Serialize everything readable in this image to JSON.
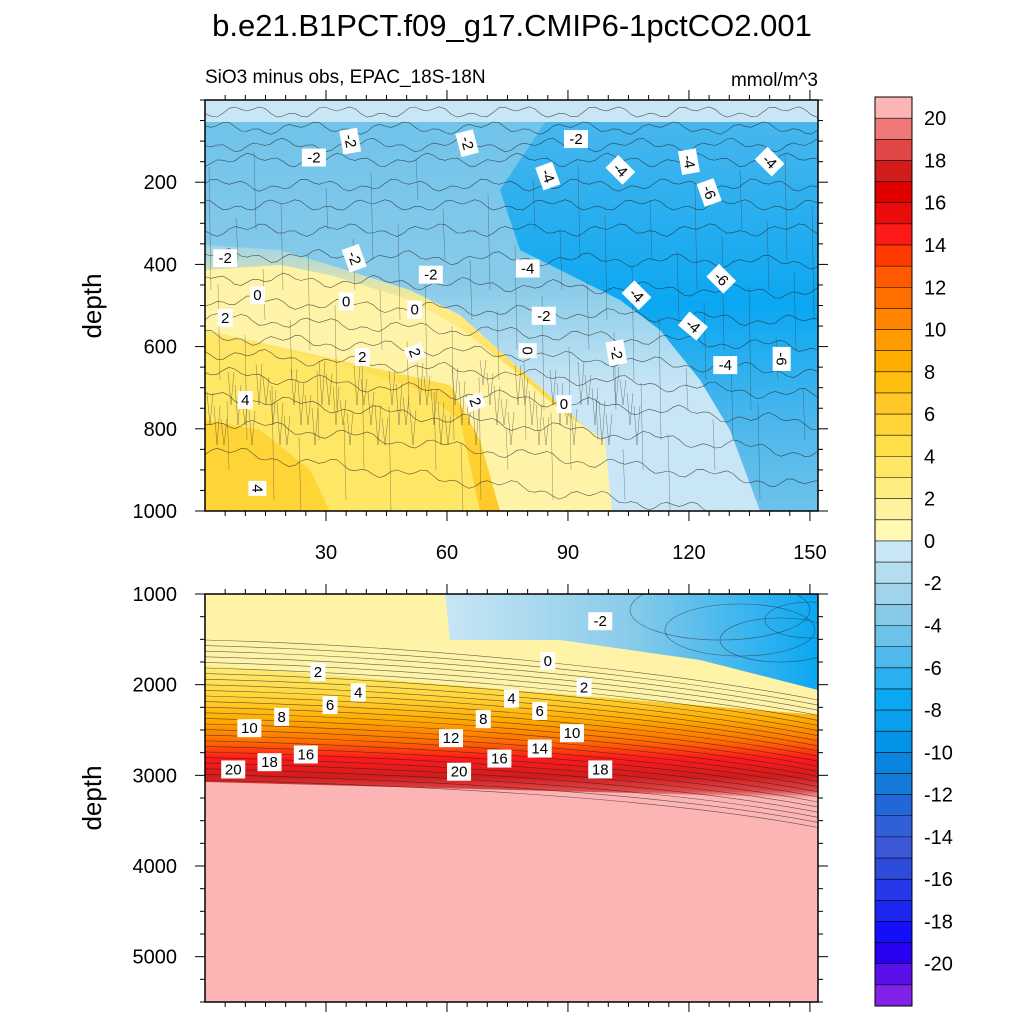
{
  "chart_data": {
    "type": "contour",
    "title": "b.e21.B1PCT.f09_g17.CMIP6-1pctCO2.001",
    "subtitle_left": "SiO3 minus obs, EPAC_18S-18N",
    "subtitle_right": "mmol/m^3",
    "x_range": [
      0,
      152
    ],
    "x_ticks": [
      30,
      60,
      90,
      120,
      150
    ],
    "x_tick_labels": [
      "30",
      "60",
      "90",
      "120",
      "150"
    ],
    "top_panel": {
      "ylabel": "depth",
      "ylim": [
        0,
        1000
      ],
      "y_ticks": [
        200,
        400,
        600,
        800,
        1000
      ],
      "y_tick_labels": [
        "200",
        "400",
        "600",
        "800",
        "1000"
      ]
    },
    "bottom_panel": {
      "ylabel": "depth",
      "ylim": [
        1000,
        5500
      ],
      "y_ticks": [
        1000,
        2000,
        3000,
        4000,
        5000
      ],
      "y_tick_labels": [
        "1000",
        "2000",
        "3000",
        "4000",
        "5000"
      ]
    },
    "contour_labels_top": [
      {
        "x": 36,
        "d": 100,
        "text": "-2",
        "rot": 80
      },
      {
        "x": 65,
        "d": 105,
        "text": "-2",
        "rot": 75
      },
      {
        "x": 92,
        "d": 95,
        "text": "-2",
        "rot": 0
      },
      {
        "x": 27,
        "d": 140,
        "text": "-2",
        "rot": 0
      },
      {
        "x": 85,
        "d": 185,
        "text": "-4",
        "rot": 70
      },
      {
        "x": 103,
        "d": 170,
        "text": "-4",
        "rot": 45
      },
      {
        "x": 120,
        "d": 150,
        "text": "-4",
        "rot": 80
      },
      {
        "x": 140,
        "d": 150,
        "text": "-4",
        "rot": 45
      },
      {
        "x": 125,
        "d": 225,
        "text": "-6",
        "rot": 70
      },
      {
        "x": 5,
        "d": 385,
        "text": "-2",
        "rot": 0
      },
      {
        "x": 37,
        "d": 385,
        "text": "-2",
        "rot": 70
      },
      {
        "x": 56,
        "d": 425,
        "text": "-2",
        "rot": 0
      },
      {
        "x": 80,
        "d": 410,
        "text": "-4",
        "rot": 0
      },
      {
        "x": 107,
        "d": 475,
        "text": "-4",
        "rot": 45
      },
      {
        "x": 128,
        "d": 435,
        "text": "-6",
        "rot": 45
      },
      {
        "x": 84,
        "d": 525,
        "text": "-2",
        "rot": 0
      },
      {
        "x": 121,
        "d": 550,
        "text": "-4",
        "rot": 40
      },
      {
        "x": 102,
        "d": 615,
        "text": "-2",
        "rot": 80
      },
      {
        "x": 129,
        "d": 645,
        "text": "-4",
        "rot": 0
      },
      {
        "x": 143,
        "d": 630,
        "text": "-6",
        "rot": 90
      },
      {
        "x": 13,
        "d": 475,
        "text": "0",
        "rot": 0
      },
      {
        "x": 35,
        "d": 490,
        "text": "0",
        "rot": 0
      },
      {
        "x": 52,
        "d": 510,
        "text": "0",
        "rot": 0
      },
      {
        "x": 80,
        "d": 610,
        "text": "0",
        "rot": 90
      },
      {
        "x": 89,
        "d": 740,
        "text": "0",
        "rot": 0
      },
      {
        "x": 5,
        "d": 530,
        "text": "2",
        "rot": 0
      },
      {
        "x": 39,
        "d": 625,
        "text": "2",
        "rot": 0
      },
      {
        "x": 52,
        "d": 615,
        "text": "2",
        "rot": 70
      },
      {
        "x": 67,
        "d": 735,
        "text": "2",
        "rot": 70
      },
      {
        "x": 10,
        "d": 730,
        "text": "4",
        "rot": 0
      },
      {
        "x": 13,
        "d": 945,
        "text": "4",
        "rot": 90
      }
    ],
    "contour_labels_bottom": [
      {
        "x": 98,
        "d": 1300,
        "text": "-2",
        "rot": 0
      },
      {
        "x": 85,
        "d": 1740,
        "text": "0",
        "rot": 0
      },
      {
        "x": 28,
        "d": 1860,
        "text": "2",
        "rot": 0
      },
      {
        "x": 94,
        "d": 2030,
        "text": "2",
        "rot": 0
      },
      {
        "x": 38,
        "d": 2085,
        "text": "4",
        "rot": 0
      },
      {
        "x": 76,
        "d": 2155,
        "text": "4",
        "rot": 0
      },
      {
        "x": 31,
        "d": 2225,
        "text": "6",
        "rot": 0
      },
      {
        "x": 83,
        "d": 2290,
        "text": "6",
        "rot": 0
      },
      {
        "x": 19,
        "d": 2355,
        "text": "8",
        "rot": 0
      },
      {
        "x": 69,
        "d": 2380,
        "text": "8",
        "rot": 0
      },
      {
        "x": 11,
        "d": 2480,
        "text": "10",
        "rot": 0
      },
      {
        "x": 91,
        "d": 2535,
        "text": "10",
        "rot": 0
      },
      {
        "x": 61,
        "d": 2590,
        "text": "12",
        "rot": 0
      },
      {
        "x": 83,
        "d": 2705,
        "text": "14",
        "rot": 0
      },
      {
        "x": 25,
        "d": 2770,
        "text": "16",
        "rot": 0
      },
      {
        "x": 73,
        "d": 2815,
        "text": "16",
        "rot": 0
      },
      {
        "x": 16,
        "d": 2855,
        "text": "18",
        "rot": 0
      },
      {
        "x": 98,
        "d": 2935,
        "text": "18",
        "rot": 0
      },
      {
        "x": 7,
        "d": 2935,
        "text": "20",
        "rot": 0
      },
      {
        "x": 63,
        "d": 2960,
        "text": "20",
        "rot": 0
      }
    ],
    "colorbar": {
      "labels": [
        "20",
        "18",
        "16",
        "14",
        "12",
        "10",
        "8",
        "6",
        "4",
        "2",
        "0",
        "-2",
        "-4",
        "-6",
        "-8",
        "-10",
        "-12",
        "-14",
        "-16",
        "-18",
        "-20"
      ],
      "colors": [
        "#fdb4b4",
        "#f07878",
        "#e04848",
        "#d21c1c",
        "#e00000",
        "#ea0b0b",
        "#ff1a1a",
        "#ff3a00",
        "#ff5a00",
        "#ff6f00",
        "#ff8400",
        "#ff9a00",
        "#ffac00",
        "#ffbd10",
        "#ffc828",
        "#ffd437",
        "#ffdf48",
        "#ffe664",
        "#ffed80",
        "#fff29e",
        "#fff9b4",
        "#c8e6f5",
        "#b4ddf0",
        "#9fd4ec",
        "#88cbe9",
        "#6dc2ea",
        "#4fb8ec",
        "#2aaff0",
        "#0ba7f2",
        "#0aa0ee",
        "#0493e6",
        "#0a84de",
        "#157bd9",
        "#2167d8",
        "#3060d6",
        "#3d57d6",
        "#2d4cdc",
        "#2639e8",
        "#1c26f0",
        "#130ff8",
        "#2a00f0",
        "#5a10e8",
        "#8222e8"
      ]
    }
  }
}
